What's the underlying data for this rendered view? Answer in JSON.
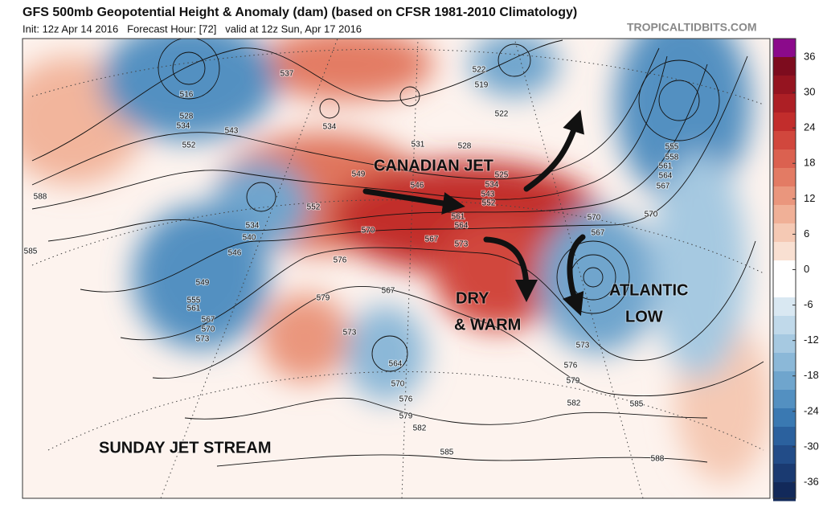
{
  "header": {
    "title": "GFS 500mb Geopotential Height & Anomaly (dam) (based on CFSR 1981-2010 Climatology)",
    "subtitle": "Init: 12z Apr 14 2016   Forecast Hour: [72]   valid at 12z Sun, Apr 17 2016",
    "source": "TROPICALTIDBITS.COM"
  },
  "annotations": [
    "CANADIAN JET",
    "DRY",
    "& WARM",
    "ATLANTIC",
    "LOW",
    "SUNDAY JET STREAM"
  ],
  "contour_labels": [
    516,
    528,
    534,
    543,
    552,
    537,
    534,
    588,
    585,
    534,
    540,
    546,
    549,
    555,
    561,
    567,
    570,
    573,
    552,
    549,
    546,
    570,
    567,
    573,
    576,
    579,
    567,
    573,
    564,
    570,
    576,
    579,
    582,
    585,
    573,
    576,
    579,
    582,
    585,
    588,
    570,
    567,
    570,
    555,
    558,
    561,
    564,
    567,
    522,
    519,
    522,
    525,
    534,
    543,
    552,
    561,
    564,
    531,
    528
  ],
  "colorbar": {
    "ticks": [
      36,
      30,
      24,
      18,
      12,
      6,
      0,
      -6,
      -12,
      -18,
      -24,
      -30,
      -36
    ],
    "colors": [
      "#8b0a8b",
      "#7d0c1e",
      "#951420",
      "#ad1f25",
      "#c22d2c",
      "#d1473d",
      "#db6150",
      "#e37b64",
      "#ea967d",
      "#f0b097",
      "#f5c9b4",
      "#f9e0d2",
      "#ffffff",
      "#ffffff",
      "#d9e8f2",
      "#c0d9ea",
      "#a6c9e1",
      "#8bb8d8",
      "#6fa5cd",
      "#5390c1",
      "#3a79b2",
      "#2b619e",
      "#224c88",
      "#1a3a71",
      "#12295a"
    ]
  }
}
